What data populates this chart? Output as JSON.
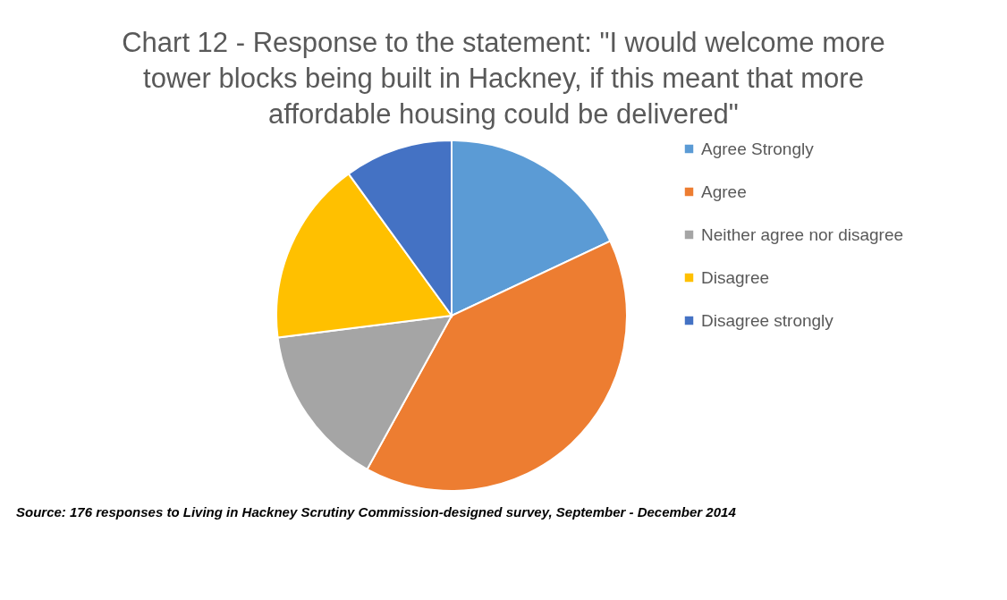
{
  "chart_data": {
    "type": "pie",
    "title": "Chart 12 - Response to the statement: \"I would welcome more tower blocks being built in Hackney, if this meant that more affordable housing could be delivered\"",
    "categories": [
      "Agree Strongly",
      "Agree",
      "Neither agree nor disagree",
      "Disagree",
      "Disagree strongly"
    ],
    "values": [
      18,
      40,
      15,
      17,
      10
    ],
    "colors": [
      "#5b9bd5",
      "#ed7d31",
      "#a5a5a5",
      "#ffc000",
      "#4472c4"
    ],
    "legend": "right",
    "annotations": [
      "Source: 176 responses to Living in Hackney Scrutiny Commission-designed survey, September - December 2014"
    ]
  }
}
